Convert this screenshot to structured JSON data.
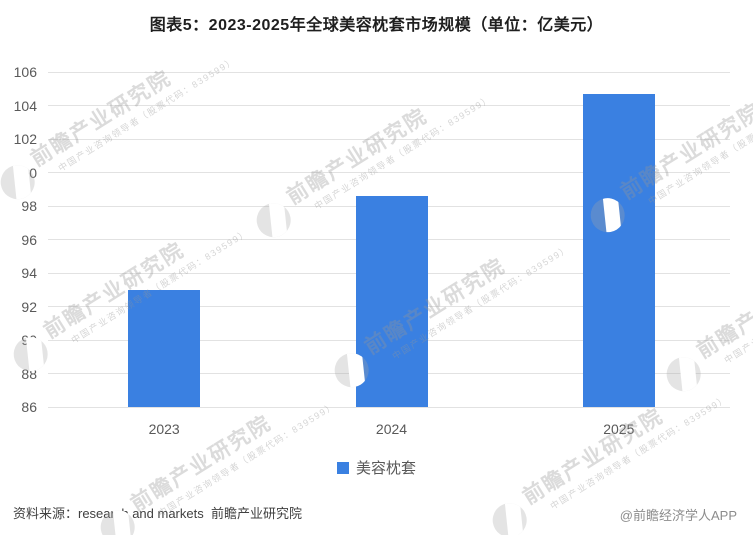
{
  "chart_data": {
    "type": "bar",
    "title": "图表5：2023-2025年全球美容枕套市场规模（单位：亿美元）",
    "unit_label": "亿美元",
    "categories": [
      "2023",
      "2024",
      "2025"
    ],
    "series": [
      {
        "name": "美容枕套",
        "values": [
          93,
          98.6,
          104.7
        ],
        "color": "#3A80E1"
      }
    ],
    "ylim": [
      86,
      106
    ],
    "yticks": [
      86,
      88,
      90,
      92,
      94,
      96,
      98,
      100,
      102,
      104,
      106
    ],
    "grid": "horizontal",
    "legend_position": "bottom"
  },
  "legend": {
    "items": [
      {
        "label": "美容枕套",
        "color": "#3A80E1"
      }
    ]
  },
  "footer": {
    "source_label": "资料来源：research and markets  前瞻产业研究院",
    "credit_label": "@前瞻经济学人APP"
  },
  "watermark": {
    "brand_text": "前瞻产业研究院",
    "sub_text": "中国产业咨询领导者（股票代码：839599）"
  },
  "colors": {
    "bar": "#3A80E1",
    "grid_line": "#e2e2e2",
    "axis_text": "#595959",
    "title_text": "#1f1f1f",
    "source_text": "#404040",
    "credit_text": "#8c8c8c"
  }
}
